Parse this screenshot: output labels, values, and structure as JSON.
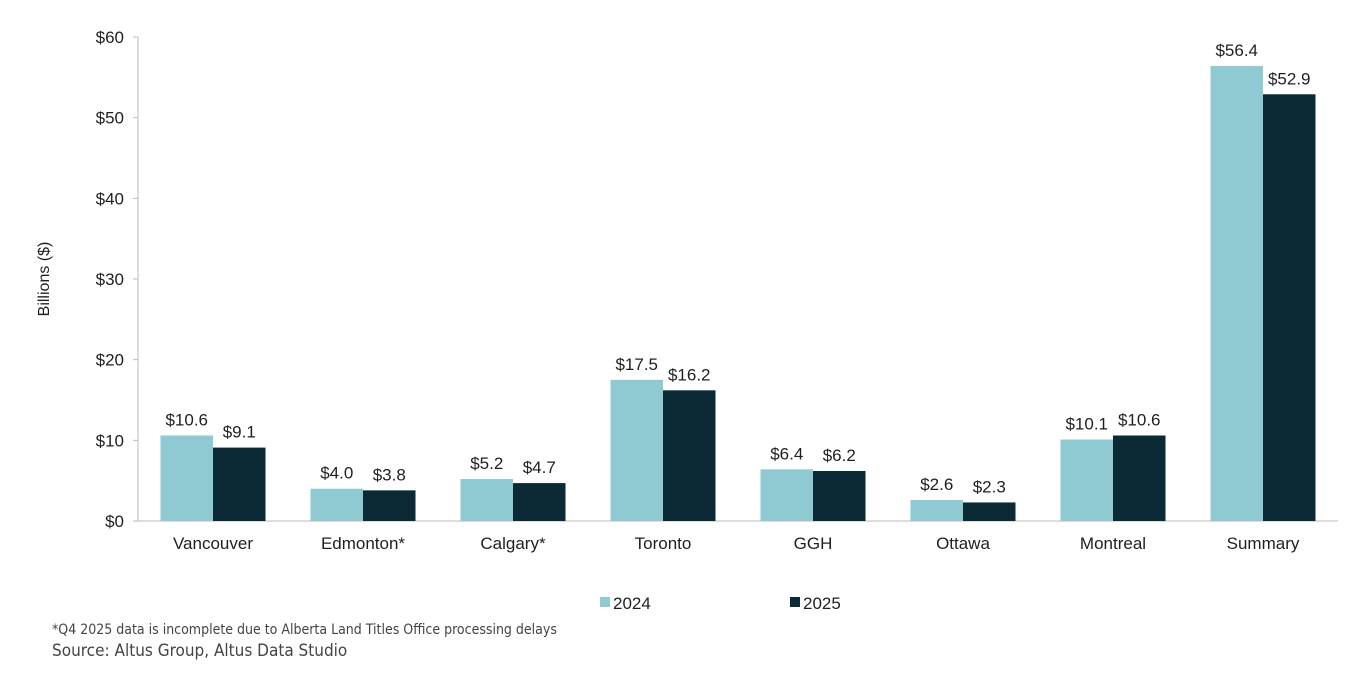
{
  "chart_data": {
    "type": "bar",
    "ylabel": "Billions ($)",
    "ylim": [
      0,
      60
    ],
    "yticks": [
      "$0",
      "$10",
      "$20",
      "$30",
      "$40",
      "$50",
      "$60"
    ],
    "categories": [
      "Vancouver",
      "Edmonton*",
      "Calgary*",
      "Toronto",
      "GGH",
      "Ottawa",
      "Montreal",
      "Summary"
    ],
    "series": [
      {
        "name": "2024",
        "color": "#8fc9d2",
        "values": [
          10.6,
          4.0,
          5.2,
          17.5,
          6.4,
          2.6,
          10.1,
          56.4
        ],
        "labels": [
          "$10.6",
          "$4.0",
          "$5.2",
          "$17.5",
          "$6.4",
          "$2.6",
          "$10.1",
          "$56.4"
        ]
      },
      {
        "name": "2025",
        "color": "#0b2a35",
        "values": [
          9.1,
          3.8,
          4.7,
          16.2,
          6.2,
          2.3,
          10.6,
          52.9
        ],
        "labels": [
          "$9.1",
          "$3.8",
          "$4.7",
          "$16.2",
          "$6.2",
          "$2.3",
          "$10.6",
          "$52.9"
        ]
      }
    ],
    "grid": false,
    "legend": "bottom"
  },
  "footnote": "*Q4 2025 data is incomplete due to Alberta Land Titles Office processing delays",
  "source": "Source:  Altus Group, Altus Data Studio"
}
